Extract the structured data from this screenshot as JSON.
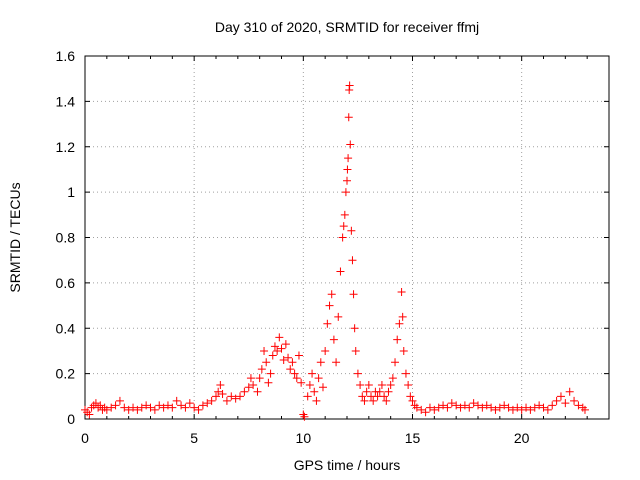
{
  "chart_data": {
    "type": "scatter",
    "title": "Day 310 of 2020, SRMTID for receiver ffmj",
    "xlabel": "GPS time / hours",
    "ylabel": "SRMTID / TECUs",
    "xlim": [
      0,
      24
    ],
    "ylim": [
      0,
      1.6
    ],
    "xticks": [
      0,
      5,
      10,
      15,
      20
    ],
    "xtick_labels": [
      "0",
      "5",
      "10",
      "15",
      "20"
    ],
    "yticks": [
      0,
      0.2,
      0.4,
      0.6,
      0.8,
      1.0,
      1.2,
      1.4,
      1.6
    ],
    "ytick_labels": [
      "0",
      "0.2",
      "0.4",
      "0.6",
      "0.8",
      "1",
      "1.2",
      "1.4",
      "1.6"
    ],
    "grid": true,
    "marker": "+",
    "marker_color": "#ff0000",
    "series": [
      {
        "name": "SRMTID",
        "points": [
          [
            0.0,
            0.04
          ],
          [
            0.1,
            0.03
          ],
          [
            0.2,
            0.02
          ],
          [
            0.3,
            0.05
          ],
          [
            0.4,
            0.06
          ],
          [
            0.5,
            0.07
          ],
          [
            0.6,
            0.05
          ],
          [
            0.7,
            0.06
          ],
          [
            0.8,
            0.04
          ],
          [
            0.9,
            0.05
          ],
          [
            1.0,
            0.04
          ],
          [
            1.2,
            0.05
          ],
          [
            1.4,
            0.06
          ],
          [
            1.6,
            0.08
          ],
          [
            1.8,
            0.05
          ],
          [
            2.0,
            0.04
          ],
          [
            2.2,
            0.05
          ],
          [
            2.4,
            0.04
          ],
          [
            2.6,
            0.05
          ],
          [
            2.8,
            0.06
          ],
          [
            3.0,
            0.05
          ],
          [
            3.2,
            0.04
          ],
          [
            3.4,
            0.06
          ],
          [
            3.6,
            0.05
          ],
          [
            3.8,
            0.06
          ],
          [
            4.0,
            0.05
          ],
          [
            4.2,
            0.08
          ],
          [
            4.4,
            0.06
          ],
          [
            4.6,
            0.05
          ],
          [
            4.8,
            0.07
          ],
          [
            5.0,
            0.05
          ],
          [
            5.2,
            0.04
          ],
          [
            5.4,
            0.06
          ],
          [
            5.6,
            0.07
          ],
          [
            5.8,
            0.08
          ],
          [
            6.0,
            0.1
          ],
          [
            6.1,
            0.12
          ],
          [
            6.2,
            0.15
          ],
          [
            6.3,
            0.11
          ],
          [
            6.5,
            0.08
          ],
          [
            6.7,
            0.1
          ],
          [
            6.9,
            0.09
          ],
          [
            7.1,
            0.1
          ],
          [
            7.3,
            0.12
          ],
          [
            7.5,
            0.14
          ],
          [
            7.6,
            0.18
          ],
          [
            7.7,
            0.15
          ],
          [
            7.9,
            0.12
          ],
          [
            8.0,
            0.18
          ],
          [
            8.1,
            0.22
          ],
          [
            8.2,
            0.3
          ],
          [
            8.3,
            0.25
          ],
          [
            8.4,
            0.16
          ],
          [
            8.5,
            0.2
          ],
          [
            8.6,
            0.28
          ],
          [
            8.7,
            0.32
          ],
          [
            8.8,
            0.3
          ],
          [
            8.9,
            0.36
          ],
          [
            9.0,
            0.31
          ],
          [
            9.1,
            0.26
          ],
          [
            9.2,
            0.33
          ],
          [
            9.3,
            0.27
          ],
          [
            9.4,
            0.22
          ],
          [
            9.5,
            0.25
          ],
          [
            9.6,
            0.2
          ],
          [
            9.7,
            0.18
          ],
          [
            9.8,
            0.28
          ],
          [
            9.9,
            0.16
          ],
          [
            10.0,
            0.02
          ],
          [
            10.05,
            0.01
          ],
          [
            10.2,
            0.1
          ],
          [
            10.3,
            0.15
          ],
          [
            10.4,
            0.2
          ],
          [
            10.5,
            0.12
          ],
          [
            10.6,
            0.08
          ],
          [
            10.7,
            0.18
          ],
          [
            10.8,
            0.25
          ],
          [
            10.9,
            0.14
          ],
          [
            11.0,
            0.3
          ],
          [
            11.1,
            0.42
          ],
          [
            11.2,
            0.5
          ],
          [
            11.3,
            0.55
          ],
          [
            11.4,
            0.35
          ],
          [
            11.5,
            0.25
          ],
          [
            11.6,
            0.45
          ],
          [
            11.7,
            0.65
          ],
          [
            11.8,
            0.8
          ],
          [
            11.85,
            0.85
          ],
          [
            11.9,
            0.9
          ],
          [
            11.95,
            1.0
          ],
          [
            12.0,
            1.05
          ],
          [
            12.02,
            1.1
          ],
          [
            12.05,
            1.15
          ],
          [
            12.08,
            1.33
          ],
          [
            12.1,
            1.45
          ],
          [
            12.12,
            1.47
          ],
          [
            12.15,
            1.21
          ],
          [
            12.2,
            0.83
          ],
          [
            12.25,
            0.7
          ],
          [
            12.3,
            0.55
          ],
          [
            12.35,
            0.4
          ],
          [
            12.4,
            0.3
          ],
          [
            12.5,
            0.2
          ],
          [
            12.6,
            0.15
          ],
          [
            12.7,
            0.1
          ],
          [
            12.8,
            0.08
          ],
          [
            12.9,
            0.12
          ],
          [
            13.0,
            0.15
          ],
          [
            13.1,
            0.1
          ],
          [
            13.2,
            0.08
          ],
          [
            13.3,
            0.12
          ],
          [
            13.4,
            0.1
          ],
          [
            13.5,
            0.12
          ],
          [
            13.6,
            0.15
          ],
          [
            13.7,
            0.1
          ],
          [
            13.8,
            0.08
          ],
          [
            13.9,
            0.12
          ],
          [
            14.0,
            0.15
          ],
          [
            14.1,
            0.18
          ],
          [
            14.2,
            0.25
          ],
          [
            14.3,
            0.35
          ],
          [
            14.4,
            0.42
          ],
          [
            14.5,
            0.56
          ],
          [
            14.55,
            0.45
          ],
          [
            14.6,
            0.3
          ],
          [
            14.7,
            0.2
          ],
          [
            14.8,
            0.15
          ],
          [
            14.9,
            0.1
          ],
          [
            15.0,
            0.08
          ],
          [
            15.1,
            0.06
          ],
          [
            15.2,
            0.05
          ],
          [
            15.4,
            0.04
          ],
          [
            15.6,
            0.03
          ],
          [
            15.8,
            0.05
          ],
          [
            16.0,
            0.04
          ],
          [
            16.2,
            0.05
          ],
          [
            16.4,
            0.06
          ],
          [
            16.6,
            0.05
          ],
          [
            16.8,
            0.07
          ],
          [
            17.0,
            0.06
          ],
          [
            17.2,
            0.05
          ],
          [
            17.4,
            0.06
          ],
          [
            17.6,
            0.05
          ],
          [
            17.8,
            0.07
          ],
          [
            18.0,
            0.06
          ],
          [
            18.2,
            0.05
          ],
          [
            18.4,
            0.06
          ],
          [
            18.6,
            0.05
          ],
          [
            18.8,
            0.04
          ],
          [
            19.0,
            0.05
          ],
          [
            19.2,
            0.06
          ],
          [
            19.4,
            0.05
          ],
          [
            19.6,
            0.04
          ],
          [
            19.8,
            0.05
          ],
          [
            20.0,
            0.04
          ],
          [
            20.2,
            0.05
          ],
          [
            20.4,
            0.04
          ],
          [
            20.6,
            0.05
          ],
          [
            20.8,
            0.06
          ],
          [
            21.0,
            0.05
          ],
          [
            21.2,
            0.04
          ],
          [
            21.4,
            0.06
          ],
          [
            21.6,
            0.08
          ],
          [
            21.8,
            0.1
          ],
          [
            22.0,
            0.07
          ],
          [
            22.2,
            0.12
          ],
          [
            22.4,
            0.08
          ],
          [
            22.6,
            0.06
          ],
          [
            22.8,
            0.05
          ],
          [
            22.9,
            0.04
          ]
        ]
      }
    ]
  }
}
